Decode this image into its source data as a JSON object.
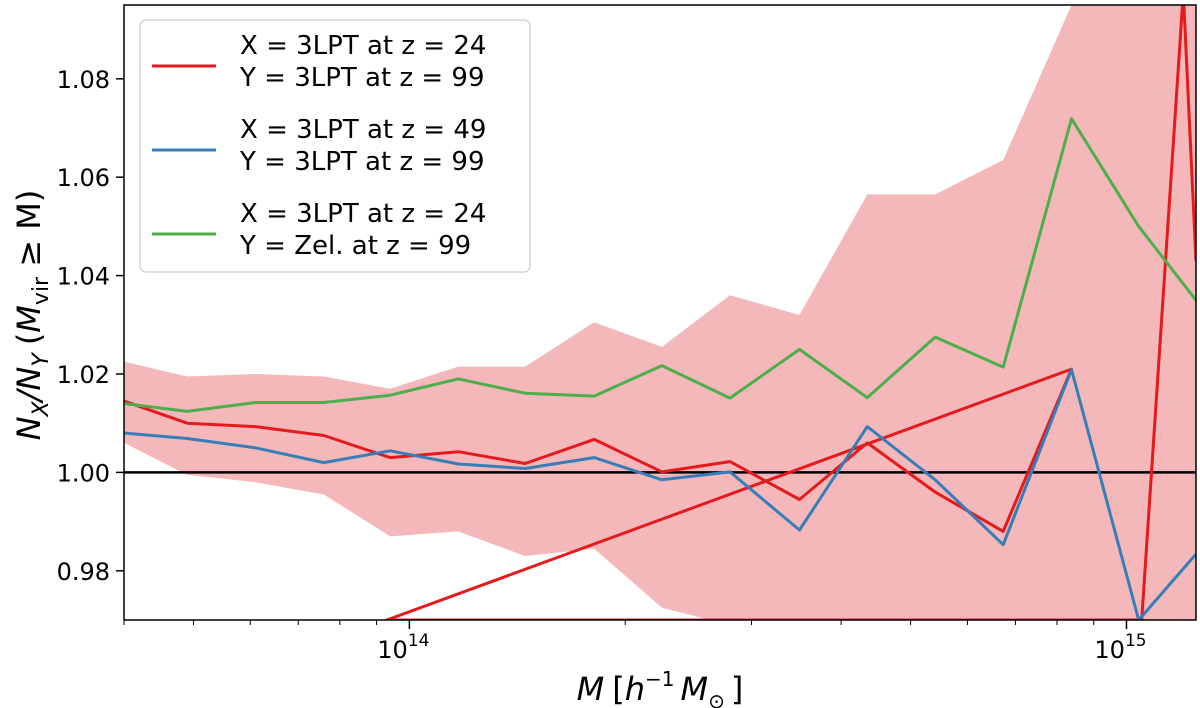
{
  "chart_data": {
    "type": "line",
    "x_scale": "log",
    "xlim": [
      40000000000000,
      1250000000000000
    ],
    "ylim": [
      0.97,
      1.095
    ],
    "xlabel": "M [h⁻¹ M⊙]",
    "ylabel": "N_X/N_Y (M_vir ≥ M)",
    "ylabel_parts": {
      "ratio_base1": "N",
      "ratio_sub1": "X",
      "ratio_base2": "/N",
      "ratio_sub2": "Y",
      "paren_open": "(",
      "m_base": "M",
      "m_sub": "vir",
      "rest": " ≥ M)"
    },
    "xlabel_parts": {
      "m": "M",
      "open": "[",
      "h": "h",
      "exp": "−1",
      "msun": "M",
      "sun_sub": "⊙",
      "close": "]"
    },
    "x_ticks": [
      {
        "value": 100000000000000,
        "base": "10",
        "exp": "14"
      },
      {
        "value": 1000000000000000,
        "base": "10",
        "exp": "15"
      }
    ],
    "y_ticks": [
      {
        "value": 0.98,
        "label": "0.98"
      },
      {
        "value": 1.0,
        "label": "1.00"
      },
      {
        "value": 1.02,
        "label": "1.02"
      },
      {
        "value": 1.04,
        "label": "1.04"
      },
      {
        "value": 1.06,
        "label": "1.06"
      },
      {
        "value": 1.08,
        "label": "1.08"
      }
    ],
    "reference_line": {
      "y": 1.0,
      "color": "#000000"
    },
    "band": {
      "color": "#f4b8ba",
      "x": [
        40000000000000.0,
        49000000000000.0,
        61000000000000.0,
        76000000000000.0,
        94000000000000.0,
        117000000000000.0,
        145000000000000.0,
        181000000000000.0,
        225000000000000.0,
        280000000000000.0,
        350000000000000.0,
        435000000000000.0,
        541000000000000.0,
        673000000000000.0,
        838000000000000.0,
        1040000000000000.0,
        1250000000000000.0
      ],
      "lower": [
        1.006,
        0.9995,
        0.998,
        0.9955,
        0.987,
        0.988,
        0.983,
        0.9845,
        0.9725,
        0.969,
        0.969,
        0.969,
        0.969,
        0.969,
        0.969,
        0.969,
        0.969
      ],
      "upper": [
        1.0225,
        1.0195,
        1.02,
        1.0195,
        1.017,
        1.0215,
        1.0215,
        1.0305,
        1.0255,
        1.036,
        1.032,
        1.0565,
        1.0565,
        1.0635,
        1.095,
        1.095,
        1.095
      ]
    },
    "series": [
      {
        "name": "red",
        "color": "#e41a1c",
        "x": [
          40000000000000.0,
          49000000000000.0,
          61000000000000.0,
          76000000000000.0,
          94000000000000.0,
          117000000000000.0,
          145000000000000.0,
          181000000000000.0,
          225000000000000.0,
          280000000000000.0,
          350000000000000.0,
          435000000000000.0,
          541000000000000.0,
          673000000000000.0,
          838000000000000.0,
          93000000000000.0,
          1050000000000000.0,
          1200000000000000.0,
          1250000000000000.0
        ],
        "y": [
          1.0145,
          1.01,
          1.0093,
          1.0075,
          1.003,
          1.0042,
          1.0018,
          1.0067,
          1.0001,
          1.0022,
          0.9945,
          1.006,
          0.996,
          0.988,
          1.021,
          0.97,
          0.97,
          1.0975,
          1.043
        ]
      },
      {
        "name": "blue",
        "color": "#377eb8",
        "x": [
          40000000000000.0,
          49000000000000.0,
          61000000000000.0,
          76000000000000.0,
          94000000000000.0,
          117000000000000.0,
          145000000000000.0,
          181000000000000.0,
          225000000000000.0,
          280000000000000.0,
          350000000000000.0,
          435000000000000.0,
          541000000000000.0,
          673000000000000.0,
          838000000000000.0,
          1040000000000000.0,
          1250000000000000.0
        ],
        "y": [
          1.008,
          1.0069,
          1.005,
          1.002,
          1.0044,
          1.0017,
          1.0008,
          1.003,
          0.9985,
          1.0001,
          0.9883,
          1.0093,
          0.9985,
          0.9853,
          1.0209,
          0.97,
          0.9834
        ]
      },
      {
        "name": "green",
        "color": "#4daf4a",
        "x": [
          40000000000000.0,
          49000000000000.0,
          61000000000000.0,
          76000000000000.0,
          94000000000000.0,
          117000000000000.0,
          145000000000000.0,
          181000000000000.0,
          225000000000000.0,
          280000000000000.0,
          350000000000000.0,
          435000000000000.0,
          541000000000000.0,
          673000000000000.0,
          838000000000000.0,
          1040000000000000.0,
          1250000000000000.0
        ],
        "y": [
          1.014,
          1.0124,
          1.0142,
          1.0142,
          1.0157,
          1.019,
          1.0161,
          1.0155,
          1.0217,
          1.0151,
          1.025,
          1.0152,
          1.0275,
          1.0214,
          1.0719,
          1.05,
          1.035
        ]
      }
    ],
    "legend": {
      "position": "top-left",
      "entries": [
        {
          "color": "#e41a1c",
          "x_label": "X = 3LPT at z = 24",
          "y_label": "Y = 3LPT at z = 99"
        },
        {
          "color": "#377eb8",
          "x_label": "X = 3LPT at z = 49",
          "y_label": "Y = 3LPT at z = 99"
        },
        {
          "color": "#4daf4a",
          "x_label": "X = 3LPT at z = 24",
          "y_label": "Y = Zel. at z = 99"
        }
      ]
    }
  }
}
